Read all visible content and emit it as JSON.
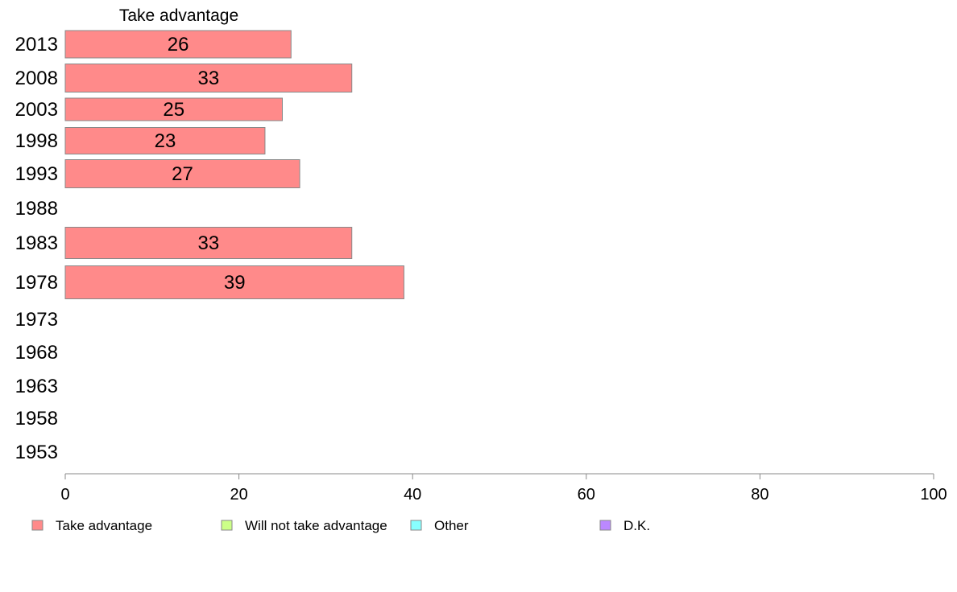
{
  "chart_data": {
    "type": "bar",
    "orientation": "horizontal",
    "column_title": "Take advantage",
    "categories": [
      "2013",
      "2008",
      "2003",
      "1998",
      "1993",
      "1988",
      "1983",
      "1978",
      "1973",
      "1968",
      "1963",
      "1958",
      "1953"
    ],
    "series": [
      {
        "name": "Take advantage",
        "color": "#ff8a8a",
        "values": [
          26,
          33,
          25,
          23,
          27,
          null,
          33,
          39,
          null,
          null,
          null,
          null,
          null
        ]
      }
    ],
    "xlim": [
      0,
      100
    ],
    "xticks": [
      "0",
      "20",
      "40",
      "60",
      "80",
      "100"
    ],
    "legend": [
      {
        "label": "Take advantage",
        "color": "#ff8a8a"
      },
      {
        "label": "Will not take advantage",
        "color": "#ccff88"
      },
      {
        "label": "Other",
        "color": "#88ffff"
      },
      {
        "label": "D.K.",
        "color": "#bb88ff"
      }
    ],
    "legend_position": "bottom",
    "grid": false
  }
}
